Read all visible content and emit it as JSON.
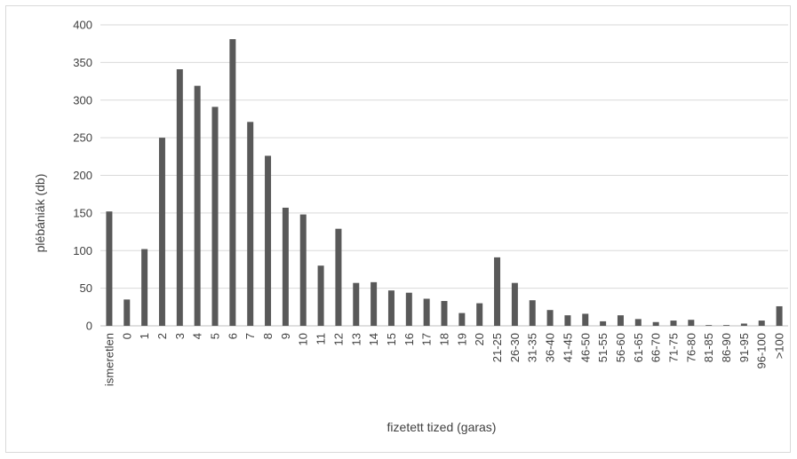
{
  "chart_data": {
    "type": "bar",
    "title": "",
    "xlabel": "fizetett tized (garas)",
    "ylabel": "plébániák (db)",
    "ylim": [
      0,
      400
    ],
    "yticks": [
      0,
      50,
      100,
      150,
      200,
      250,
      300,
      350,
      400
    ],
    "grid": true,
    "legend": "none",
    "bar_color": "#595959",
    "categories": [
      "ismeretlen",
      "0",
      "1",
      "2",
      "3",
      "4",
      "5",
      "6",
      "7",
      "8",
      "9",
      "10",
      "11",
      "12",
      "13",
      "14",
      "15",
      "16",
      "17",
      "18",
      "19",
      "20",
      "21-25",
      "26-30",
      "31-35",
      "36-40",
      "41-45",
      "46-50",
      "51-55",
      "56-60",
      "61-65",
      "66-70",
      "71-75",
      "76-80",
      "81-85",
      "86-90",
      "91-95",
      "96-100",
      ">100"
    ],
    "values": [
      152,
      35,
      102,
      250,
      341,
      319,
      291,
      381,
      271,
      226,
      157,
      148,
      80,
      129,
      57,
      58,
      47,
      44,
      36,
      33,
      17,
      30,
      91,
      57,
      34,
      21,
      14,
      16,
      6,
      14,
      9,
      5,
      7,
      8,
      1,
      1,
      3,
      7,
      26
    ]
  }
}
